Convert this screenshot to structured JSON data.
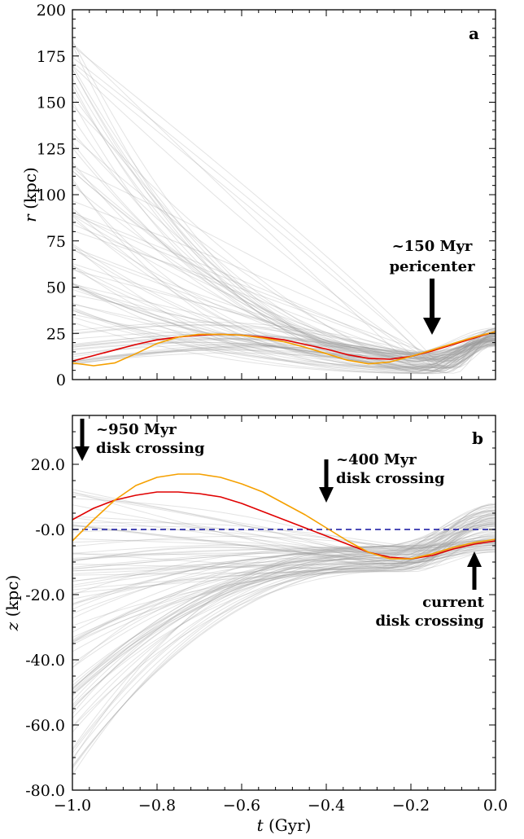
{
  "chart_data": [
    {
      "type": "line",
      "panel_label": "a",
      "ylabel_var": "r",
      "ylabel_unit": " (kpc)",
      "xlim": [
        -1.0,
        0.0
      ],
      "ylim": [
        0,
        200
      ],
      "yticks": [
        0,
        25,
        50,
        75,
        100,
        125,
        150,
        175,
        200
      ],
      "ytick_labels": [
        "0",
        "25",
        "50",
        "75",
        "100",
        "125",
        "150",
        "175",
        "200"
      ],
      "grid": false,
      "x_grid_samples": [
        -1.0,
        -0.95,
        -0.9,
        -0.85,
        -0.8,
        -0.75,
        -0.7,
        -0.65,
        -0.6,
        -0.55,
        -0.5,
        -0.45,
        -0.4,
        -0.35,
        -0.3,
        -0.25,
        -0.2,
        -0.15,
        -0.1,
        -0.05,
        0.0
      ],
      "highlight_series": [
        {
          "color": "#e00000",
          "values": [
            10,
            13,
            16,
            19,
            21.5,
            23,
            24,
            24.5,
            24,
            23,
            21.5,
            19,
            16.5,
            13.5,
            11.5,
            11,
            12.5,
            15.5,
            19,
            22.5,
            26
          ]
        },
        {
          "color": "#f5a000",
          "values": [
            9,
            7.5,
            9,
            14,
            19.5,
            23,
            24.5,
            24.5,
            24,
            22.5,
            20.5,
            17.5,
            14,
            10.5,
            8.5,
            9.5,
            12.5,
            16,
            19.5,
            23,
            26
          ]
        }
      ],
      "background_family": {
        "color": "#9a9a9a",
        "count": 90,
        "start_range": [
          8,
          188
        ],
        "end_range": [
          18,
          28
        ],
        "min_dip_range": [
          3,
          15
        ],
        "dip_t": -0.15
      },
      "annotations": [
        {
          "lines": [
            "~150 Myr",
            "pericenter"
          ],
          "arrow_x": -0.15,
          "arrow_dir": "down"
        }
      ]
    },
    {
      "type": "line",
      "panel_label": "b",
      "ylabel_var": "z",
      "ylabel_unit": " (kpc)",
      "xlabel_var": "t",
      "xlabel_unit": " (Gyr)",
      "xlim": [
        -1.0,
        0.0
      ],
      "ylim": [
        -80,
        35
      ],
      "xticks": [
        -1.0,
        -0.8,
        -0.6,
        -0.4,
        -0.2,
        0.0
      ],
      "xtick_labels": [
        "−1.0",
        "−0.8",
        "−0.6",
        "−0.4",
        "−0.2",
        "0.0"
      ],
      "yticks": [
        20,
        0,
        -20,
        -40,
        -60,
        -80
      ],
      "ytick_labels": [
        "20.0",
        "-0.0",
        "-20.0",
        "-40.0",
        "-60.0",
        "-80.0"
      ],
      "grid": false,
      "x_grid_samples": [
        -1.0,
        -0.95,
        -0.9,
        -0.85,
        -0.8,
        -0.75,
        -0.7,
        -0.65,
        -0.6,
        -0.55,
        -0.5,
        -0.45,
        -0.4,
        -0.35,
        -0.3,
        -0.25,
        -0.2,
        -0.15,
        -0.1,
        -0.05,
        0.0
      ],
      "reference_line": {
        "y": 0,
        "color": "#1010a0",
        "dash": true
      },
      "highlight_series": [
        {
          "color": "#e00000",
          "values": [
            3,
            6.5,
            9,
            10.5,
            11.5,
            11.5,
            11,
            10,
            8,
            5.5,
            3,
            0.5,
            -2,
            -4.5,
            -7,
            -8.5,
            -9,
            -8,
            -6,
            -4.5,
            -3.5
          ]
        },
        {
          "color": "#f5a000",
          "values": [
            -3.5,
            3,
            9,
            13.5,
            16,
            17,
            17,
            16,
            14,
            11.5,
            8,
            4.5,
            0.5,
            -3.5,
            -7,
            -9,
            -9,
            -7.5,
            -5.5,
            -4,
            -3
          ]
        }
      ],
      "background_family": {
        "color": "#9a9a9a",
        "count": 90,
        "start_range": [
          -76,
          15
        ],
        "end_range": [
          -7,
          8
        ]
      },
      "annotations": [
        {
          "lines": [
            "~950 Myr",
            "disk crossing"
          ],
          "arrow_x": -0.98,
          "arrow_dir": "down"
        },
        {
          "lines": [
            "~400 Myr",
            "disk crossing"
          ],
          "arrow_x": -0.4,
          "arrow_dir": "down"
        },
        {
          "lines": [
            "current",
            "disk crossing"
          ],
          "arrow_x": -0.05,
          "arrow_dir": "up"
        }
      ]
    }
  ]
}
